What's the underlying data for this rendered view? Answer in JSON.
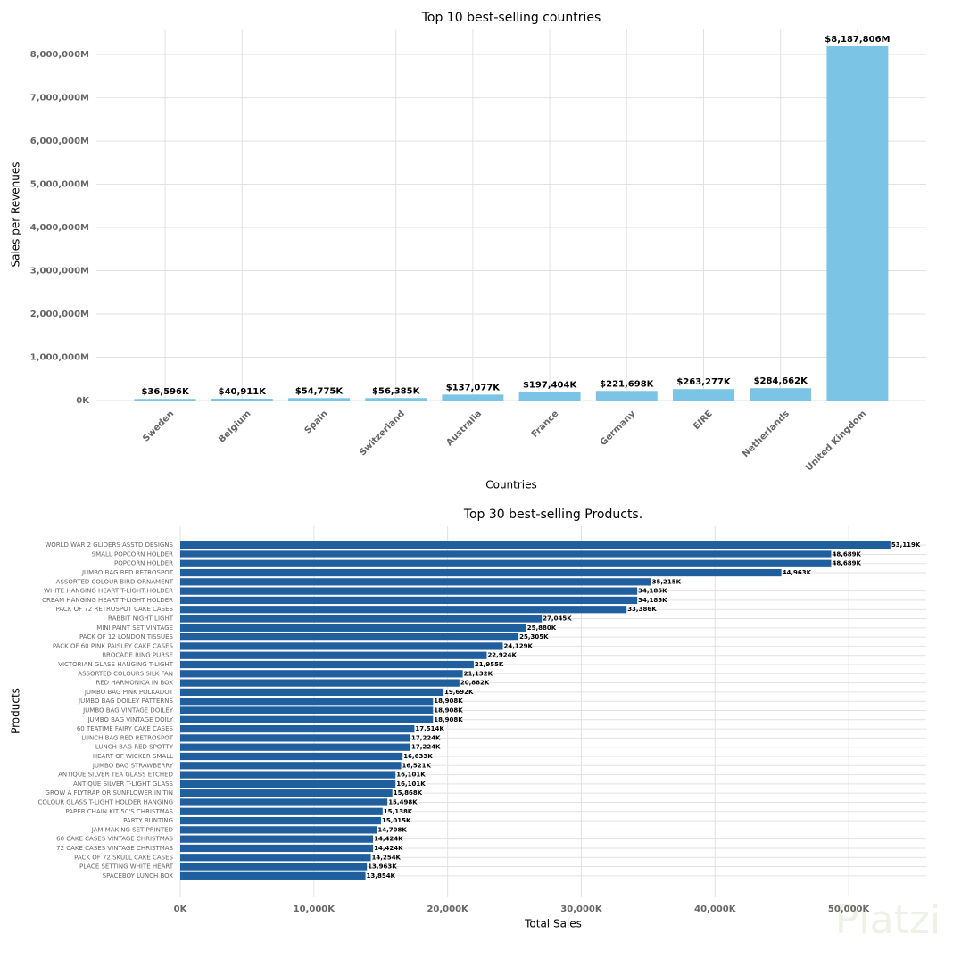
{
  "chart_data": [
    {
      "type": "bar",
      "title": "Top 10 best-selling countries",
      "x_label": "Countries",
      "y_label": "Sales per Revenues",
      "categories": [
        "Sweden",
        "Belgium",
        "Spain",
        "Switzerland",
        "Australia",
        "France",
        "Germany",
        "EIRE",
        "Netherlands",
        "United Kingdom"
      ],
      "values": [
        36596,
        40911,
        54775,
        56385,
        137077,
        197404,
        221698,
        263277,
        284662,
        8187806
      ],
      "value_labels": [
        "$36,596K",
        "$40,911K",
        "$54,775K",
        "$56,385K",
        "$137,077K",
        "$197,404K",
        "$221,698K",
        "$263,277K",
        "$284,662K",
        "$8,187,806M"
      ],
      "color": "#7bc4e6",
      "ylim": [
        0,
        8600000
      ],
      "yticks": [
        {
          "value": 0,
          "label": "0K"
        },
        {
          "value": 1000000,
          "label": "1,000,000M"
        },
        {
          "value": 2000000,
          "label": "2,000,000M"
        },
        {
          "value": 3000000,
          "label": "3,000,000M"
        },
        {
          "value": 4000000,
          "label": "4,000,000M"
        },
        {
          "value": 5000000,
          "label": "5,000,000M"
        },
        {
          "value": 6000000,
          "label": "6,000,000M"
        },
        {
          "value": 7000000,
          "label": "7,000,000M"
        },
        {
          "value": 8000000,
          "label": "8,000,000M"
        }
      ],
      "grid": true
    },
    {
      "type": "barh",
      "title": "Top 30 best-selling Products.",
      "x_label": "Total Sales",
      "y_label": "Products",
      "categories": [
        "WORLD WAR 2 GLIDERS ASSTD DESIGNS",
        "SMALL POPCORN HOLDER",
        "POPCORN HOLDER",
        "JUMBO BAG RED RETROSPOT",
        "ASSORTED COLOUR BIRD ORNAMENT",
        "WHITE HANGING HEART T-LIGHT HOLDER",
        "CREAM HANGING HEART T-LIGHT HOLDER",
        "PACK OF 72 RETROSPOT CAKE CASES",
        "RABBIT NIGHT LIGHT",
        "MINI PAINT SET VINTAGE",
        "PACK OF 12 LONDON TISSUES",
        "PACK OF 60 PINK PAISLEY CAKE CASES",
        "BROCADE RING PURSE",
        "VICTORIAN GLASS HANGING T-LIGHT",
        "ASSORTED COLOURS SILK FAN",
        "RED  HARMONICA IN BOX",
        "JUMBO BAG PINK POLKADOT",
        "JUMBO BAG DOILEY PATTERNS",
        "JUMBO BAG VINTAGE DOILEY",
        "JUMBO BAG VINTAGE DOILY",
        "60 TEATIME FAIRY CAKE CASES",
        "LUNCH BAG RED RETROSPOT",
        "LUNCH BAG RED SPOTTY",
        "HEART OF WICKER SMALL",
        "JUMBO BAG STRAWBERRY",
        "ANTIQUE SILVER TEA GLASS ETCHED",
        "ANTIQUE SILVER T-LIGHT GLASS",
        "GROW A FLYTRAP OR SUNFLOWER IN TIN",
        "COLOUR GLASS T-LIGHT HOLDER HANGING",
        "PAPER CHAIN KIT 50'S CHRISTMAS",
        "PARTY BUNTING",
        "JAM MAKING SET PRINTED",
        "60 CAKE CASES VINTAGE CHRISTMAS",
        "72 CAKE CASES VINTAGE CHRISTMAS",
        "PACK OF 72 SKULL CAKE CASES",
        "PLACE SETTING WHITE HEART",
        "SPACEBOY LUNCH BOX"
      ],
      "values": [
        53119,
        48689,
        48689,
        44963,
        35215,
        34185,
        34185,
        33386,
        27045,
        25880,
        25305,
        24129,
        22924,
        21955,
        21132,
        20882,
        19692,
        18908,
        18908,
        18908,
        17514,
        17224,
        17224,
        16633,
        16521,
        16101,
        16101,
        15868,
        15498,
        15138,
        15015,
        14708,
        14424,
        14424,
        14254,
        13963,
        13854
      ],
      "value_labels": [
        "53,119K",
        "48,689K",
        "48,689K",
        "44,963K",
        "35,215K",
        "34,185K",
        "34,185K",
        "33,386K",
        "27,045K",
        "25,880K",
        "25,305K",
        "24,129K",
        "22,924K",
        "21,955K",
        "21,132K",
        "20,882K",
        "19,692K",
        "18,908K",
        "18,908K",
        "18,908K",
        "17,514K",
        "17,224K",
        "17,224K",
        "16,633K",
        "16,521K",
        "16,101K",
        "16,101K",
        "15,868K",
        "15,498K",
        "15,138K",
        "15,015K",
        "14,708K",
        "14,424K",
        "14,424K",
        "14,254K",
        "13,963K",
        "13,854K"
      ],
      "color": "#1f5f9e",
      "xlim": [
        0,
        55800
      ],
      "xticks": [
        {
          "value": 0,
          "label": "0K"
        },
        {
          "value": 10000,
          "label": "10,000K"
        },
        {
          "value": 20000,
          "label": "20,000K"
        },
        {
          "value": 30000,
          "label": "30,000K"
        },
        {
          "value": 40000,
          "label": "40,000K"
        },
        {
          "value": 50000,
          "label": "50,000K"
        }
      ],
      "grid": true
    }
  ],
  "watermark": "Platzi"
}
